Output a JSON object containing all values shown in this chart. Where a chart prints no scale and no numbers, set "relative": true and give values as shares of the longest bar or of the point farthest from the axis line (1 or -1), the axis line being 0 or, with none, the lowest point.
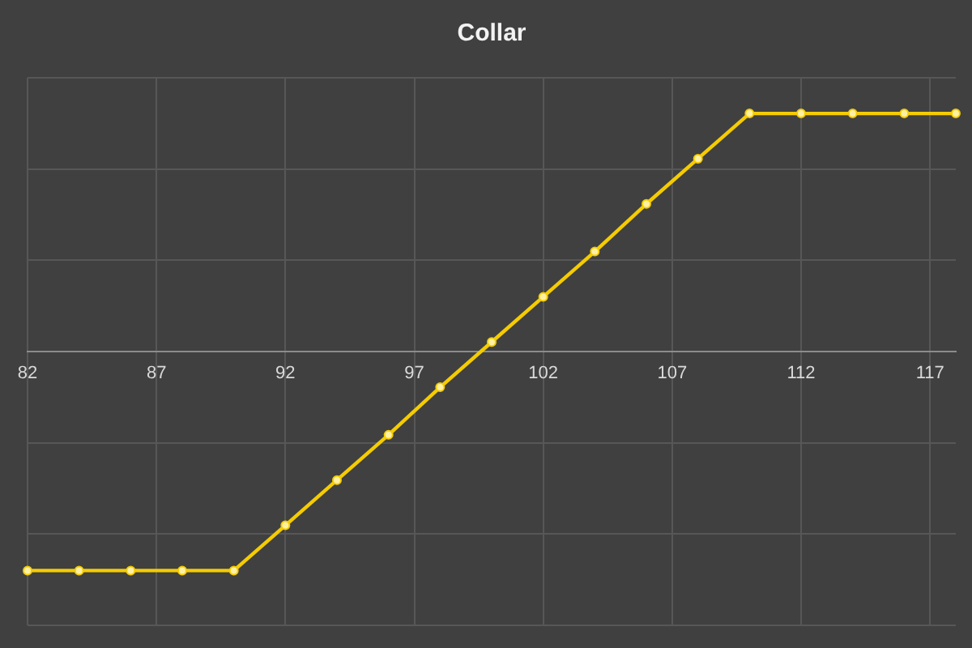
{
  "chart_data": {
    "type": "line",
    "title": "Collar",
    "relative": true,
    "x": [
      82,
      84,
      86,
      88,
      90,
      92,
      94,
      96,
      98,
      100,
      102,
      104,
      106,
      108,
      110,
      112,
      114,
      116,
      118
    ],
    "series": [
      {
        "color": "#f5cc00",
        "values": [
          -0.92,
          -0.92,
          -0.92,
          -0.92,
          -0.92,
          -0.73,
          -0.54,
          -0.35,
          -0.15,
          0.04,
          0.23,
          0.42,
          0.62,
          0.81,
          1,
          1,
          1,
          1,
          1
        ]
      }
    ],
    "xlim": [
      82,
      118
    ],
    "xticks": [
      82,
      87,
      92,
      97,
      102,
      107,
      112,
      117
    ],
    "grid": true,
    "marker": "circle",
    "line_style": "solid"
  }
}
